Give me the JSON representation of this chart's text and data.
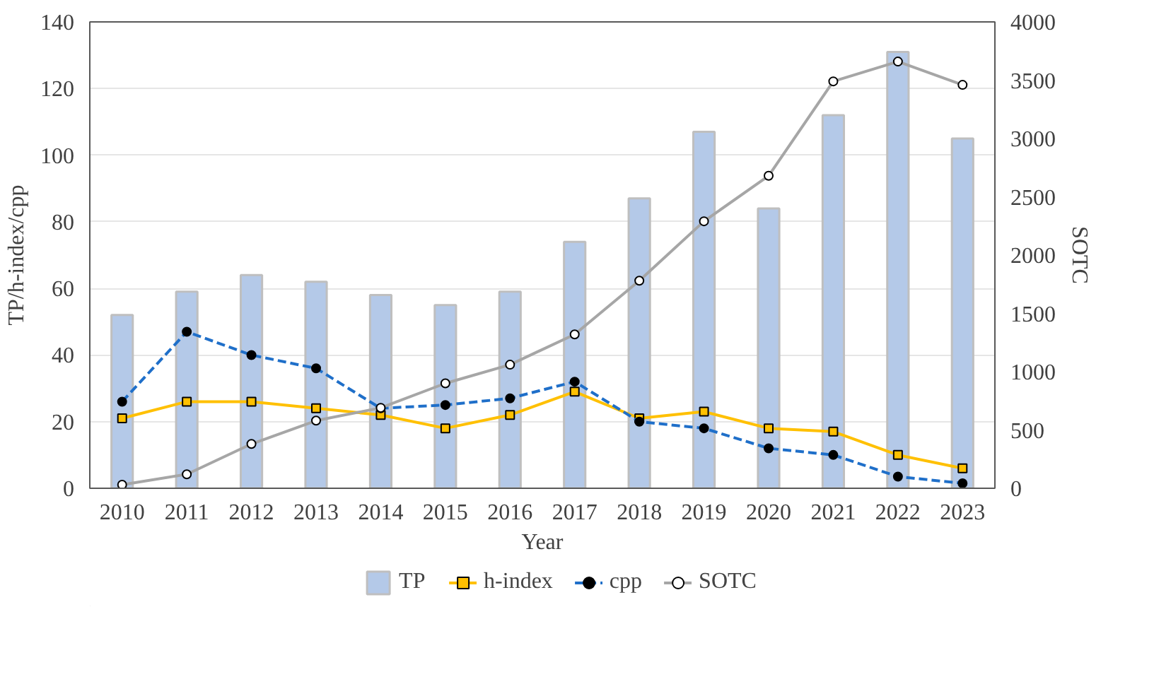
{
  "chart_data": {
    "type": "bar",
    "categories": [
      "2010",
      "2011",
      "2012",
      "2013",
      "2014",
      "2015",
      "2016",
      "2017",
      "2018",
      "2019",
      "2020",
      "2021",
      "2022",
      "2023"
    ],
    "xlabel": "Year",
    "ylabel": "TP/h-index/cpp",
    "y2label": "SOTC",
    "ylim": [
      0,
      140
    ],
    "yticks": [
      0,
      20,
      40,
      60,
      80,
      100,
      120,
      140
    ],
    "y2lim": [
      0,
      4000
    ],
    "y2ticks": [
      0,
      500,
      1000,
      1500,
      2000,
      2500,
      3000,
      3500,
      4000
    ],
    "grid": "y",
    "legend": "bottom",
    "series": [
      {
        "name": "TP",
        "color": "#b4c9e8",
        "values": [
          52,
          59,
          64,
          62,
          58,
          55,
          59,
          74,
          87,
          107,
          84,
          112,
          131,
          105
        ]
      },
      {
        "name": "h-index",
        "type": "line",
        "color": "#ffc000",
        "marker": "square",
        "line_style": "solid",
        "values": [
          21,
          26,
          26,
          24,
          22,
          18,
          22,
          29,
          21,
          23,
          18,
          17,
          10,
          6
        ]
      },
      {
        "name": "cpp",
        "type": "line",
        "color": "#1f6fc9",
        "marker": "circle",
        "line_style": "dashed",
        "values": [
          26,
          47,
          40,
          36,
          24,
          25,
          27,
          32,
          20,
          18,
          12,
          10,
          3.5,
          1.5
        ]
      },
      {
        "name": "SOTC",
        "type": "line",
        "axis": "y2",
        "color": "#a6a6a6",
        "marker": "circle",
        "line_style": "solid",
        "values": [
          30,
          120,
          380,
          580,
          690,
          900,
          1060,
          1320,
          1780,
          2290,
          2680,
          3490,
          3660,
          3460
        ]
      }
    ]
  }
}
